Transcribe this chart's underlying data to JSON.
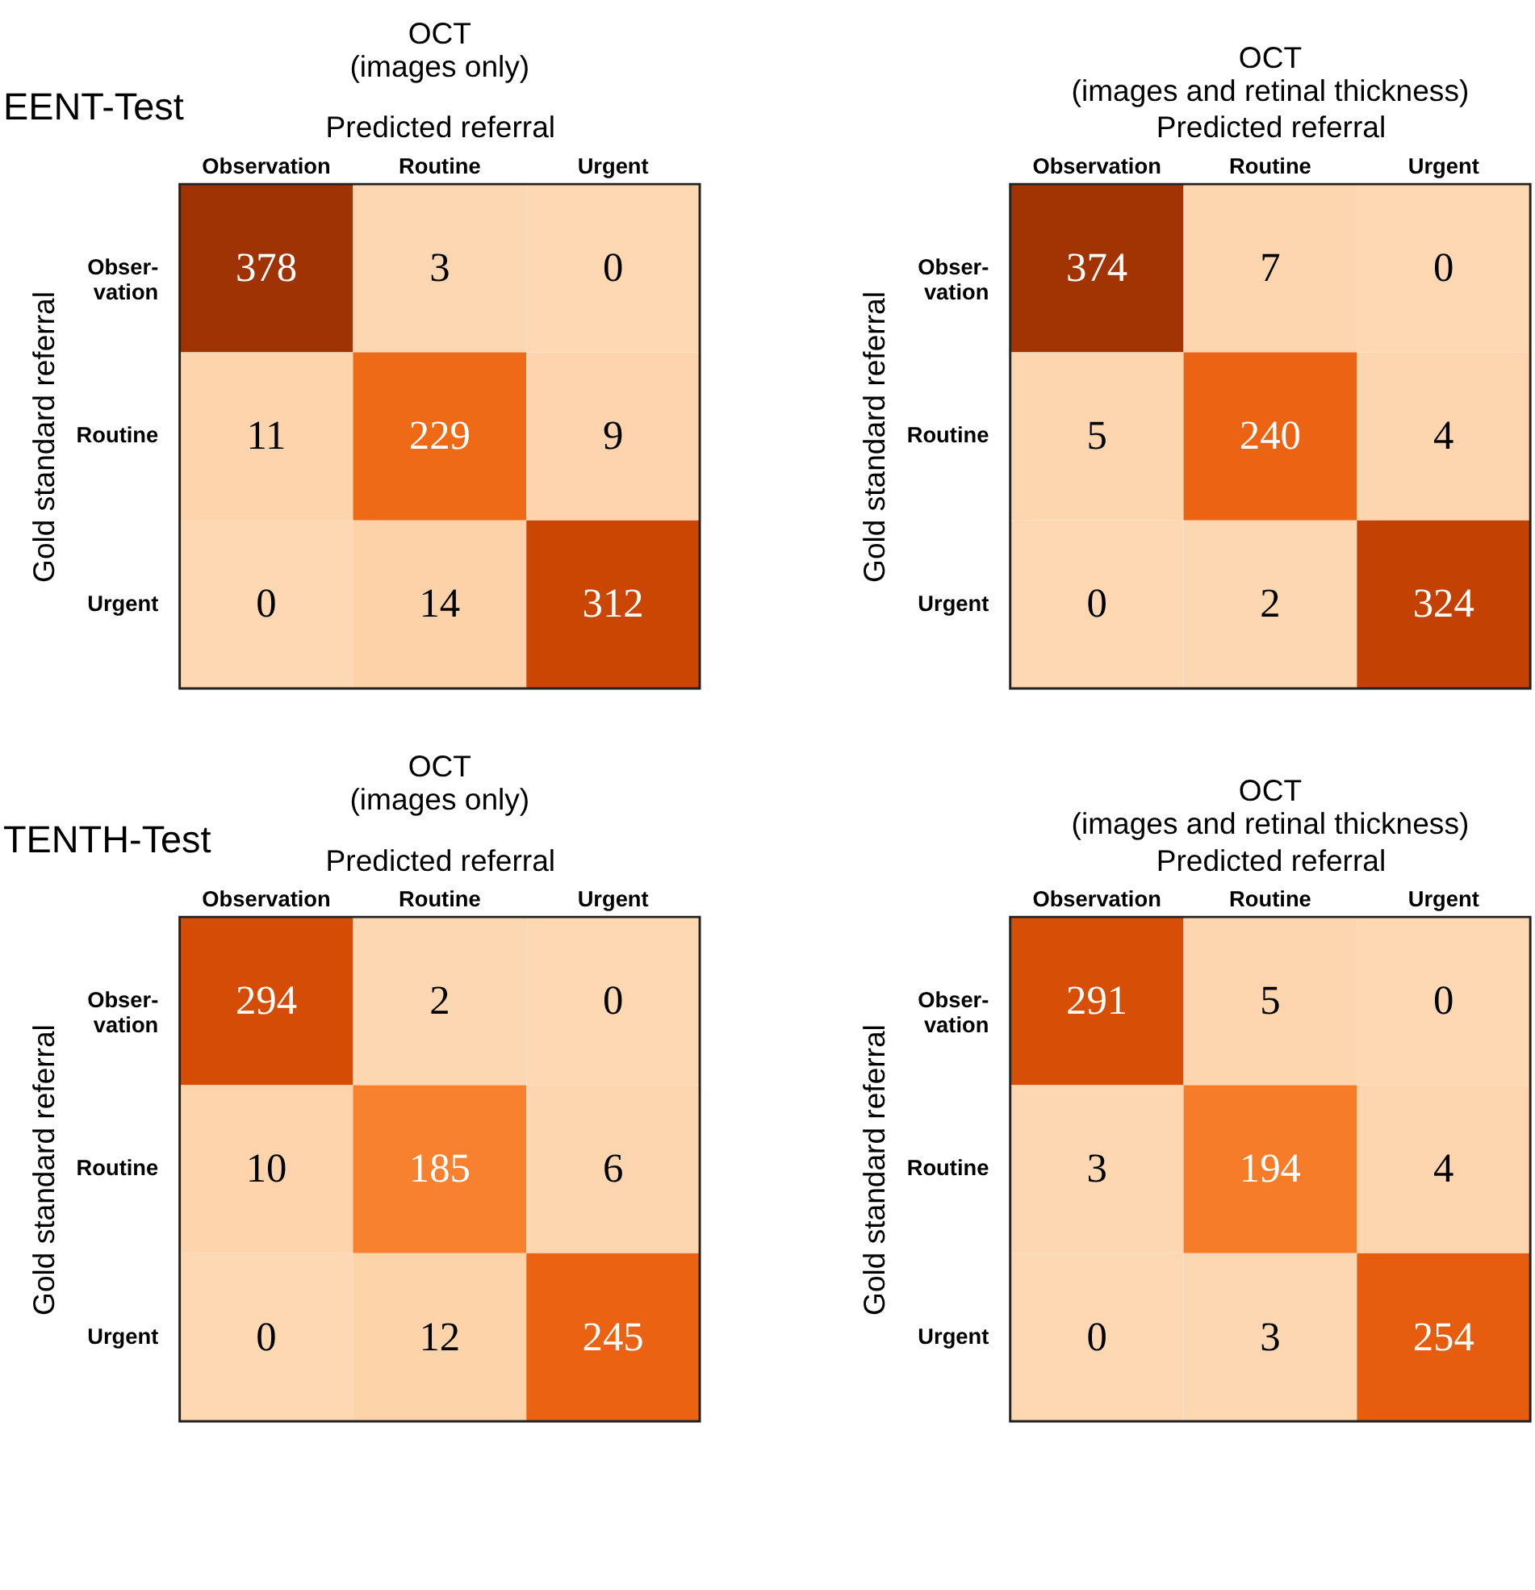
{
  "chart_data": [
    {
      "type": "heatmap",
      "title": [
        "OCT",
        "(images only)"
      ],
      "xlabel": "Predicted referral",
      "ylabel": "Gold standard referral",
      "annotations": [
        "EENT-Test"
      ],
      "data_labels": true,
      "categories": [
        "Observation",
        "Routine",
        "Urgent"
      ],
      "y_categories": [
        "Obser-\nvation",
        "Routine",
        "Urgent"
      ],
      "cells": [
        [
          378,
          3,
          0
        ],
        [
          11,
          229,
          9
        ],
        [
          0,
          14,
          312
        ]
      ]
    },
    {
      "type": "heatmap",
      "title": [
        "OCT",
        "(images and retinal thickness)"
      ],
      "xlabel": "Predicted referral",
      "ylabel": "Gold standard referral",
      "categories": [
        "Observation",
        "Routine",
        "Urgent"
      ],
      "y_categories": [
        "Obser-\nvation",
        "Routine",
        "Urgent"
      ],
      "cells": [
        [
          374,
          7,
          0
        ],
        [
          5,
          240,
          4
        ],
        [
          0,
          2,
          324
        ]
      ],
      "data_labels": true
    },
    {
      "type": "heatmap",
      "title": [
        "OCT",
        "(images only)"
      ],
      "xlabel": "Predicted referral",
      "ylabel": "Gold standard referral",
      "annotations": [
        "TENTH-Test"
      ],
      "data_labels": true,
      "categories": [
        "Observation",
        "Routine",
        "Urgent"
      ],
      "y_categories": [
        "Obser-\nvation",
        "Routine",
        "Urgent"
      ],
      "cells": [
        [
          294,
          2,
          0
        ],
        [
          10,
          185,
          6
        ],
        [
          0,
          12,
          245
        ]
      ]
    },
    {
      "type": "heatmap",
      "title": [
        "OCT",
        "(images and retinal thickness)"
      ],
      "xlabel": "Predicted referral",
      "ylabel": "Gold standard referral",
      "categories": [
        "Observation",
        "Routine",
        "Urgent"
      ],
      "y_categories": [
        "Obser-\nvation",
        "Routine",
        "Urgent"
      ],
      "cells": [
        [
          291,
          5,
          0
        ],
        [
          3,
          194,
          4
        ],
        [
          0,
          3,
          254
        ]
      ],
      "data_labels": true
    }
  ]
}
